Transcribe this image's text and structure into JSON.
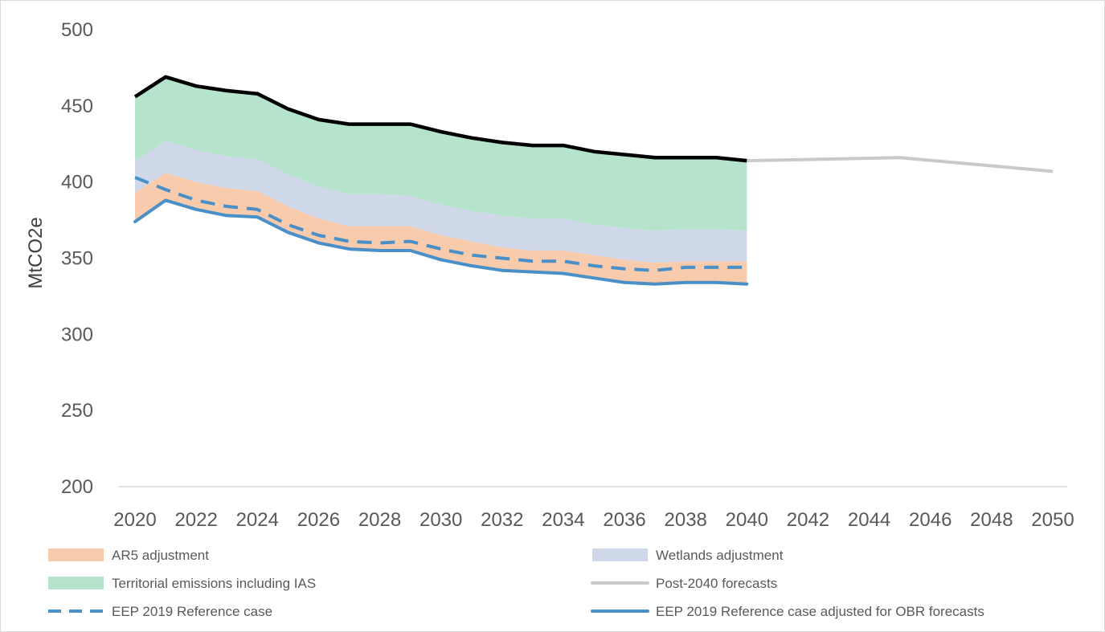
{
  "chart_data": {
    "type": "area",
    "title": "",
    "xlabel": "",
    "ylabel": "MtCO2e",
    "xlim": [
      2020,
      2050
    ],
    "ylim": [
      200,
      500
    ],
    "x_ticks": [
      2020,
      2022,
      2024,
      2026,
      2028,
      2030,
      2032,
      2034,
      2036,
      2038,
      2040,
      2042,
      2044,
      2046,
      2048,
      2050
    ],
    "y_ticks": [
      200,
      250,
      300,
      350,
      400,
      450,
      500
    ],
    "grid": false,
    "legend_position": "bottom",
    "x": [
      2020,
      2021,
      2022,
      2023,
      2024,
      2025,
      2026,
      2027,
      2028,
      2029,
      2030,
      2031,
      2032,
      2033,
      2034,
      2035,
      2036,
      2037,
      2038,
      2039,
      2040
    ],
    "stacked_areas": [
      {
        "name": "AR5 adjustment",
        "color": "#F8CBAD",
        "lower": [
          374,
          388,
          382,
          378,
          377,
          367,
          360,
          356,
          355,
          355,
          349,
          345,
          342,
          341,
          340,
          337,
          334,
          333,
          334,
          334,
          333
        ],
        "upper": [
          393,
          406,
          400,
          396,
          394,
          384,
          376,
          371,
          371,
          371,
          365,
          361,
          357,
          355,
          355,
          352,
          349,
          347,
          348,
          348,
          348
        ]
      },
      {
        "name": "Wetlands adjustment",
        "color": "#CED8E8",
        "lower": [
          393,
          406,
          400,
          396,
          394,
          384,
          376,
          371,
          371,
          371,
          365,
          361,
          357,
          355,
          355,
          352,
          349,
          347,
          348,
          348,
          348
        ],
        "upper": [
          414,
          427,
          421,
          417,
          415,
          405,
          397,
          392,
          392,
          391,
          385,
          381,
          378,
          376,
          376,
          372,
          370,
          368,
          369,
          369,
          368
        ]
      },
      {
        "name": "Territorial emissions including IAS",
        "color": "#B5E3CC",
        "lower": [
          414,
          427,
          421,
          417,
          415,
          405,
          397,
          392,
          392,
          391,
          385,
          381,
          378,
          376,
          376,
          372,
          370,
          368,
          369,
          369,
          368
        ],
        "upper": [
          456,
          469,
          463,
          460,
          458,
          448,
          441,
          438,
          438,
          438,
          433,
          429,
          426,
          424,
          424,
          420,
          418,
          416,
          416,
          416,
          414
        ]
      }
    ],
    "series": [
      {
        "name": "Territorial emissions including IAS",
        "kind": "outline",
        "color": "#000000",
        "x": [
          2020,
          2021,
          2022,
          2023,
          2024,
          2025,
          2026,
          2027,
          2028,
          2029,
          2030,
          2031,
          2032,
          2033,
          2034,
          2035,
          2036,
          2037,
          2038,
          2039,
          2040
        ],
        "values": [
          456,
          469,
          463,
          460,
          458,
          448,
          441,
          438,
          438,
          438,
          433,
          429,
          426,
          424,
          424,
          420,
          418,
          416,
          416,
          416,
          414
        ]
      },
      {
        "name": "Post-2040 forecasts",
        "kind": "line",
        "color": "#C9C9C9",
        "x": [
          2040,
          2045,
          2050
        ],
        "values": [
          414,
          416,
          407
        ]
      },
      {
        "name": "EEP 2019 Reference case",
        "kind": "dashed",
        "color": "#4A90C8",
        "x": [
          2020,
          2021,
          2022,
          2023,
          2024,
          2025,
          2026,
          2027,
          2028,
          2029,
          2030,
          2031,
          2032,
          2033,
          2034,
          2035,
          2036,
          2037,
          2038,
          2039,
          2040
        ],
        "values": [
          403,
          395,
          388,
          384,
          382,
          372,
          365,
          361,
          360,
          361,
          356,
          352,
          350,
          348,
          348,
          345,
          343,
          342,
          344,
          344,
          344
        ]
      },
      {
        "name": "EEP 2019 Reference case adjusted for OBR  forecasts",
        "kind": "line",
        "color": "#4A90C8",
        "x": [
          2020,
          2021,
          2022,
          2023,
          2024,
          2025,
          2026,
          2027,
          2028,
          2029,
          2030,
          2031,
          2032,
          2033,
          2034,
          2035,
          2036,
          2037,
          2038,
          2039,
          2040
        ],
        "values": [
          374,
          388,
          382,
          378,
          377,
          367,
          360,
          356,
          355,
          355,
          349,
          345,
          342,
          341,
          340,
          337,
          334,
          333,
          334,
          334,
          333
        ]
      }
    ],
    "legend": [
      {
        "label": "AR5 adjustment",
        "swatch": "box",
        "color": "#F8CBAD"
      },
      {
        "label": "Wetlands adjustment",
        "swatch": "box",
        "color": "#CED8E8"
      },
      {
        "label": "Territorial emissions including IAS",
        "swatch": "box",
        "color": "#B5E3CC"
      },
      {
        "label": "Post-2040 forecasts",
        "swatch": "line",
        "color": "#C9C9C9"
      },
      {
        "label": "EEP 2019 Reference case",
        "swatch": "dashed",
        "color": "#4A90C8"
      },
      {
        "label": "EEP 2019 Reference case adjusted for OBR  forecasts",
        "swatch": "line",
        "color": "#4A90C8"
      }
    ]
  }
}
